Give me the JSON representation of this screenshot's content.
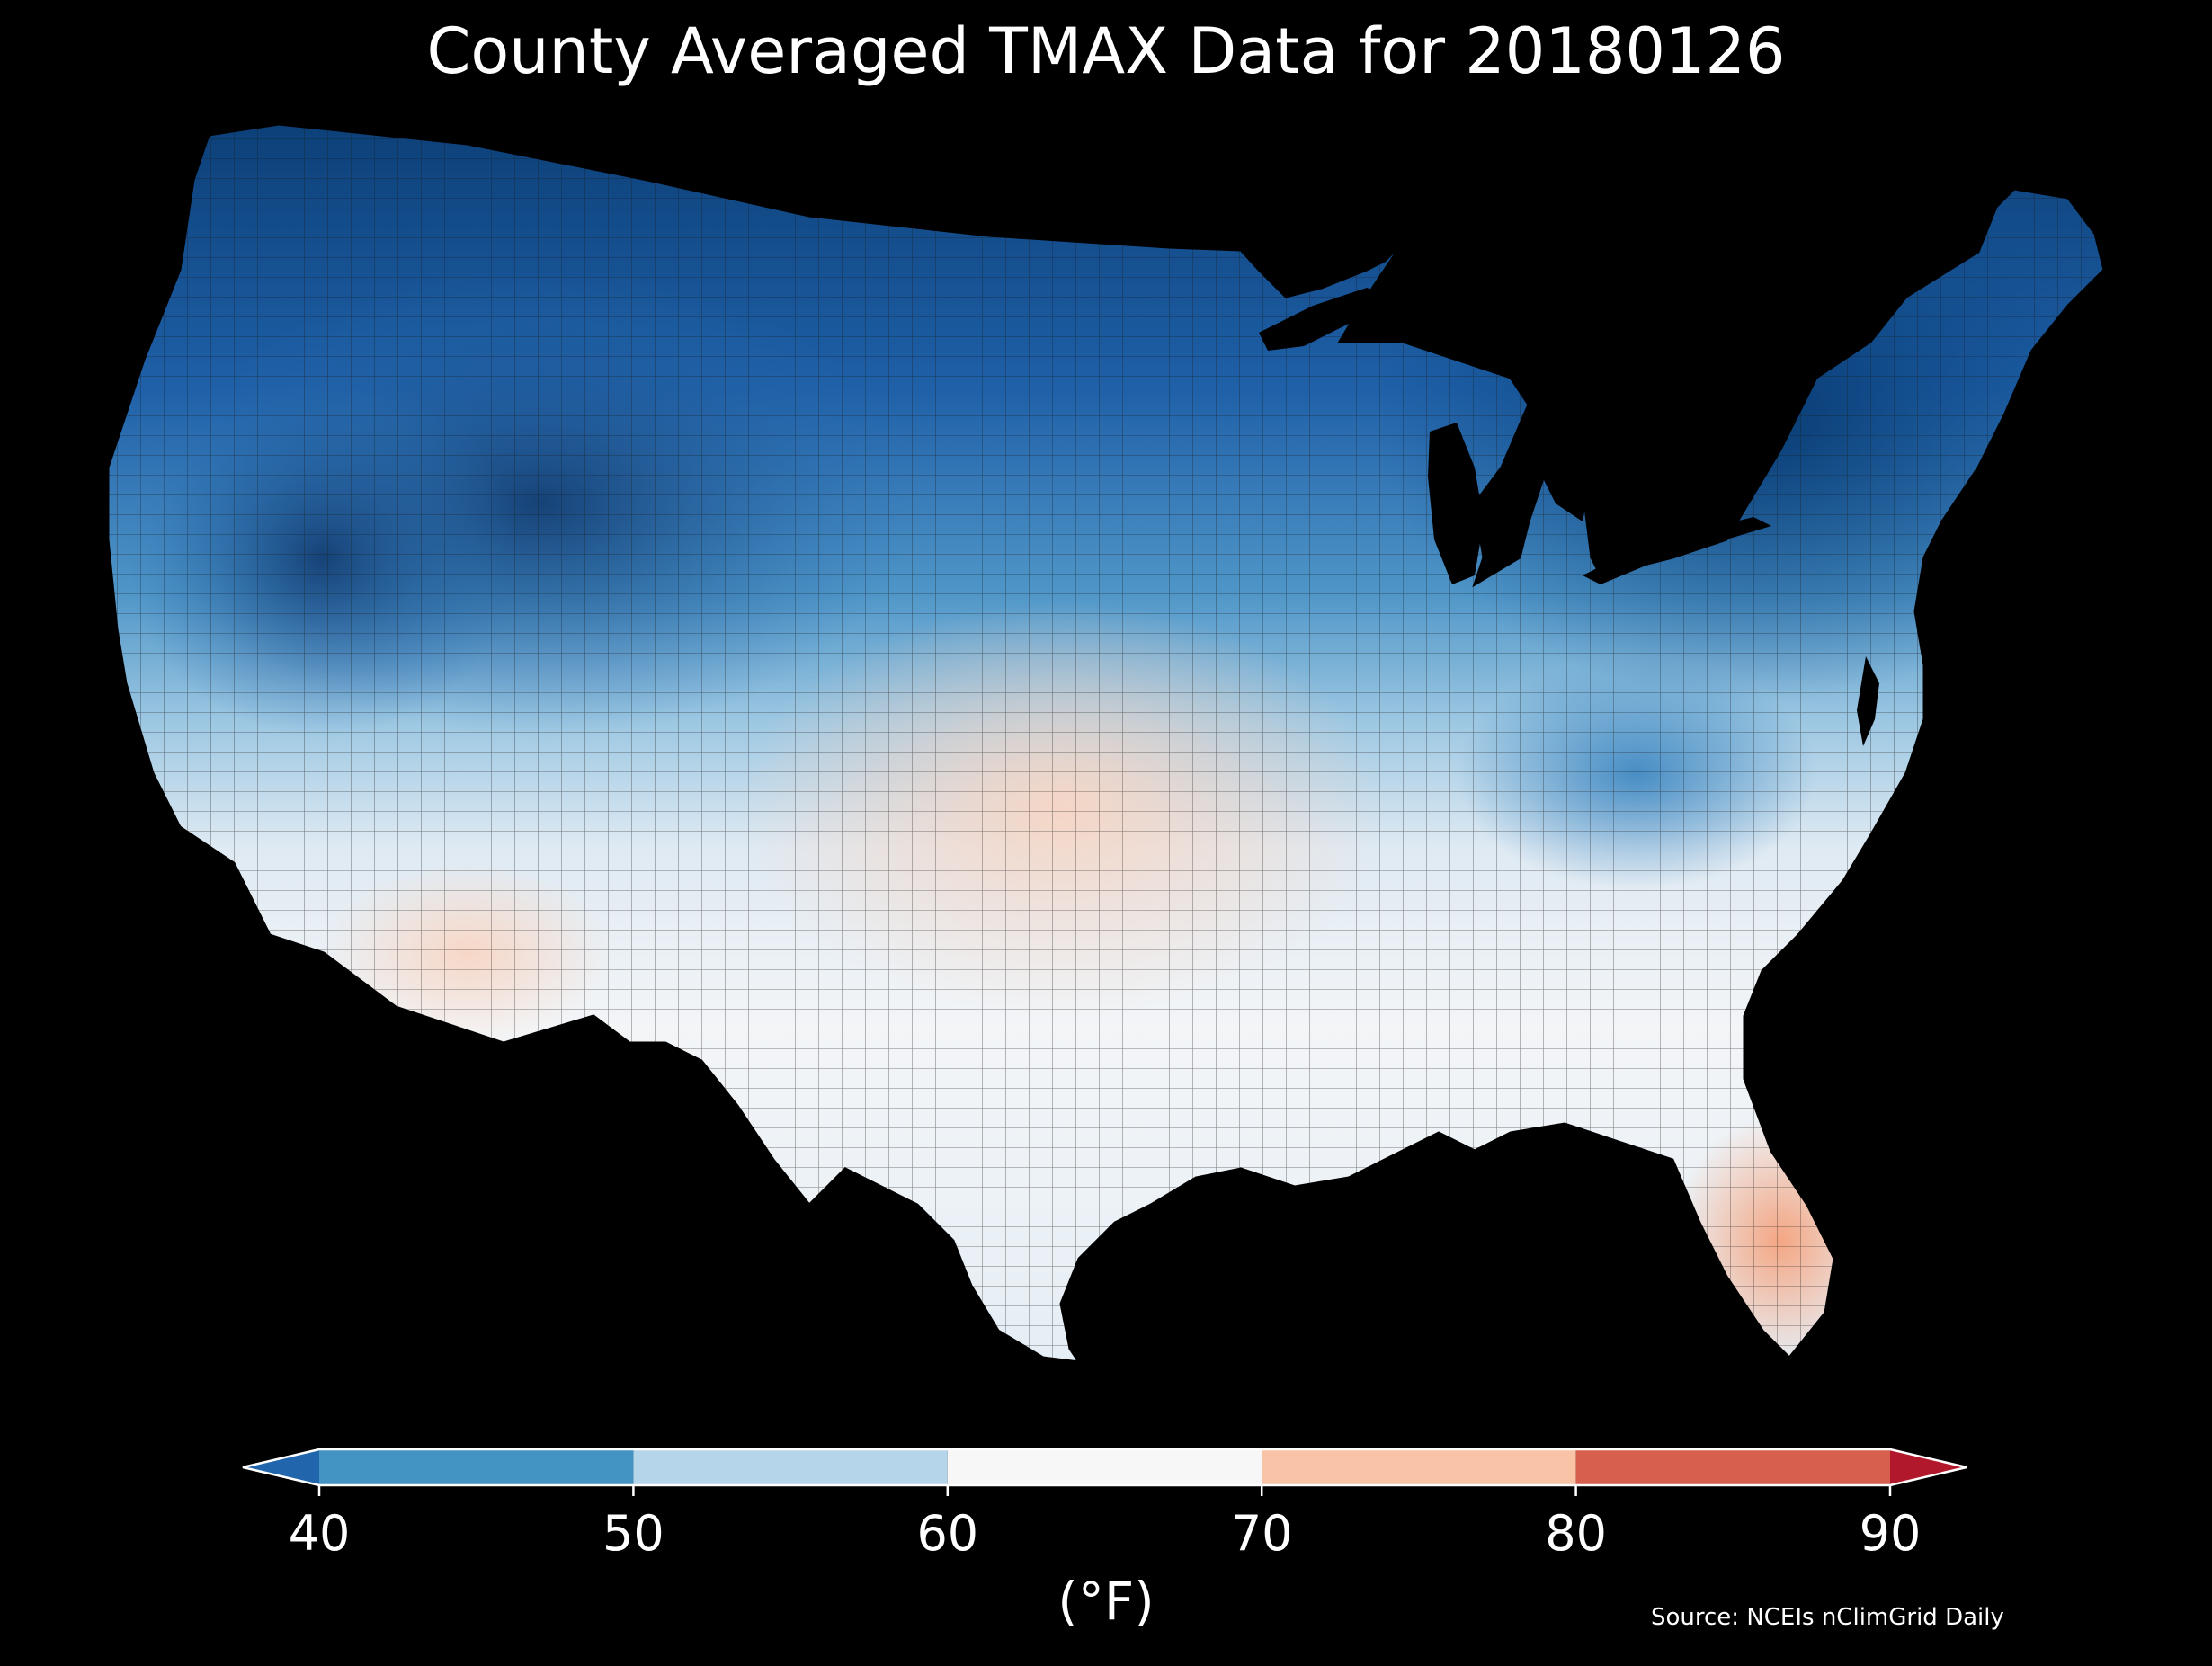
{
  "title": "County Averaged TMAX Data for 20180126",
  "source": "Source: NCEIs nClimGrid Daily",
  "colorbar": {
    "unit": "(°F)",
    "ticks": [
      "40",
      "50",
      "60",
      "70",
      "80",
      "90"
    ],
    "bins": [
      {
        "from": 40,
        "to": 50,
        "color": "#4393c3"
      },
      {
        "from": 50,
        "to": 60,
        "color": "#b5d6ea"
      },
      {
        "from": 60,
        "to": 70,
        "color": "#f7f7f7"
      },
      {
        "from": 70,
        "to": 80,
        "color": "#f9c3a8"
      },
      {
        "from": 80,
        "to": 90,
        "color": "#d6604d"
      }
    ],
    "under_color": "#2166ac",
    "over_color": "#b2182b",
    "extend": "both"
  },
  "map": {
    "region": "Contiguous United States",
    "variable": "TMAX",
    "date": "20180126",
    "background": "#000000",
    "boundary_color": "#222222"
  }
}
